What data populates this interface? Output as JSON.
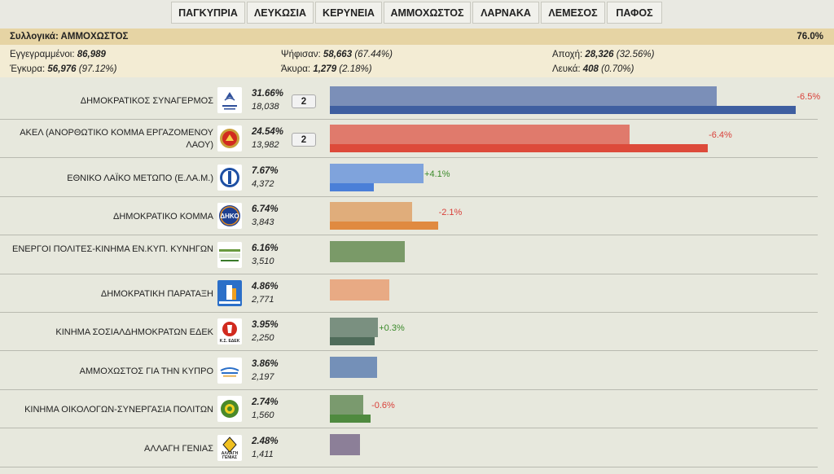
{
  "tabs": [
    "ΠΑΓΚΥΠΡΙΑ",
    "ΛΕΥΚΩΣΙΑ",
    "ΚΕΡΥΝΕΙΑ",
    "ΑΜΜΟΧΩΣΤΟΣ",
    "ΛΑΡΝΑΚΑ",
    "ΛΕΜΕΣΟΣ",
    "ΠΑΦΟΣ"
  ],
  "header": {
    "title": "Συλλογικά: ΑΜΜΟΧΩΣΤΟΣ",
    "progress": "76.0%"
  },
  "stats": {
    "registered_label": "Εγγεγραμμένοι:",
    "registered_value": "86,989",
    "voted_label": "Ψήφισαν:",
    "voted_value": "58,663",
    "voted_pct": "(67.44%)",
    "abstention_label": "Αποχή:",
    "abstention_value": "28,326",
    "abstention_pct": "(32.56%)",
    "valid_label": "Έγκυρα:",
    "valid_value": "56,976",
    "valid_pct": "(97.12%)",
    "invalid_label": "Άκυρα:",
    "invalid_value": "1,279",
    "invalid_pct": "(2.18%)",
    "blank_label": "Λευκά:",
    "blank_value": "408",
    "blank_pct": "(0.70%)"
  },
  "parties": [
    {
      "name": "ΔΗΜΟΚΡΑΤΙΚΟΣ ΣΥΝΑΓΕΡΜΟΣ",
      "pct": "31.66%",
      "votes": "18,038",
      "seats": "2",
      "change": "-6.5%",
      "value": 31.66,
      "prev": 38.16,
      "color": "#7b8fb8",
      "prev_color": "#3f5fa0",
      "logo": "disy-logo"
    },
    {
      "name": "ΑΚΕΛ (ΑΝΟΡΘΩΤΙΚΟ ΚΟΜΜΑ ΕΡΓΑΖΟΜΕΝΟΥ ΛΑΟΥ)",
      "pct": "24.54%",
      "votes": "13,982",
      "seats": "2",
      "change": "-6.4%",
      "value": 24.54,
      "prev": 30.94,
      "color": "#e07a6c",
      "prev_color": "#dd4a3a",
      "logo": "akel-logo"
    },
    {
      "name": "ΕΘΝΙΚΟ ΛΑΪΚΟ ΜΕΤΩΠΟ (Ε.ΛΑ.Μ.)",
      "pct": "7.67%",
      "votes": "4,372",
      "seats": "",
      "change": "+4.1%",
      "value": 7.67,
      "prev": 3.57,
      "color": "#7fa3dc",
      "prev_color": "#4a7fd8",
      "logo": "elam-logo"
    },
    {
      "name": "ΔΗΜΟΚΡΑΤΙΚΟ ΚΟΜΜΑ",
      "pct": "6.74%",
      "votes": "3,843",
      "seats": "",
      "change": "-2.1%",
      "value": 6.74,
      "prev": 8.84,
      "color": "#e0ad7b",
      "prev_color": "#e08a40",
      "logo": "diko-logo"
    },
    {
      "name": "ΕΝΕΡΓΟΙ ΠΟΛΙΤΕΣ-ΚΙΝΗΜΑ ΕΝ.ΚΥΠ. ΚΥΝΗΓΩΝ",
      "pct": "6.16%",
      "votes": "3,510",
      "seats": "",
      "change": "",
      "value": 6.16,
      "prev": null,
      "color": "#7a9a68",
      "prev_color": "",
      "logo": "energoi-logo"
    },
    {
      "name": "ΔΗΜΟΚΡΑΤΙΚΗ ΠΑΡΑΤΑΞΗ",
      "pct": "4.86%",
      "votes": "2,771",
      "seats": "",
      "change": "",
      "value": 4.86,
      "prev": null,
      "color": "#e8aa84",
      "prev_color": "",
      "logo": "dipa-logo"
    },
    {
      "name": "ΚΙΝΗΜΑ ΣΟΣΙΑΛΔΗΜΟΚΡΑΤΩΝ ΕΔΕΚ",
      "pct": "3.95%",
      "votes": "2,250",
      "seats": "",
      "change": "+0.3%",
      "value": 3.95,
      "prev": 3.65,
      "color": "#7a9080",
      "prev_color": "#4f6c5a",
      "logo": "edek-logo"
    },
    {
      "name": "ΑΜΜΟΧΩΣΤΟΣ ΓΙΑ ΤΗΝ ΚΥΠΡΟ",
      "pct": "3.86%",
      "votes": "2,197",
      "seats": "",
      "change": "",
      "value": 3.86,
      "prev": null,
      "color": "#7490b8",
      "prev_color": "",
      "logo": "ammochostos-logo"
    },
    {
      "name": "ΚΙΝΗΜΑ ΟΙΚΟΛΟΓΩΝ-ΣΥΝΕΡΓΑΣΙΑ ΠΟΛΙΤΩΝ",
      "pct": "2.74%",
      "votes": "1,560",
      "seats": "",
      "change": "-0.6%",
      "value": 2.74,
      "prev": 3.34,
      "color": "#7a9a6e",
      "prev_color": "#4f8a3f",
      "logo": "oikologoi-logo"
    },
    {
      "name": "ΑΛΛΑΓΗ ΓΕΝΙΑΣ",
      "pct": "2.48%",
      "votes": "1,411",
      "seats": "",
      "change": "",
      "value": 2.48,
      "prev": null,
      "color": "#8c7f98",
      "prev_color": "",
      "logo": "allagi-genias-logo"
    }
  ],
  "logo_text": {
    "edek": "Κ.Σ. ΕΔΕΚ",
    "allagi": "ΑΛΛΑΓΗ ΓΕΝΙΑΣ"
  }
}
